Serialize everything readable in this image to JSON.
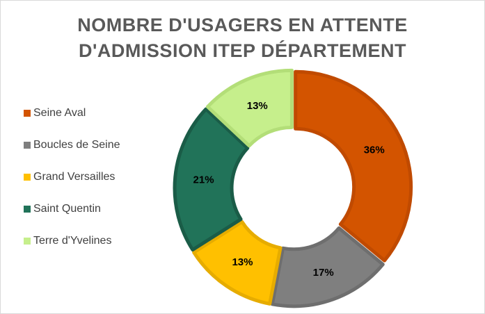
{
  "chart_data": {
    "type": "pie",
    "style": "doughnut",
    "title_lines": [
      "NOMBRE D'USAGERS EN ATTENTE",
      "D'ADMISSION ITEP DÉPARTEMENT"
    ],
    "categories": [
      "Seine Aval",
      "Boucles de Seine",
      "Grand Versailles",
      "Saint Quentin",
      "Terre d'Yvelines"
    ],
    "values": [
      36,
      17,
      13,
      21,
      13
    ],
    "labels": [
      "36%",
      "17%",
      "13%",
      "21%",
      "13%"
    ],
    "colors": [
      "#d35400",
      "#7f7f7f",
      "#ffc000",
      "#217359",
      "#c6ef8c"
    ],
    "border_colors": [
      "#c04a00",
      "#6e6e6e",
      "#e6ac00",
      "#1a5c47",
      "#b3de78"
    ],
    "legend_position": "left"
  }
}
